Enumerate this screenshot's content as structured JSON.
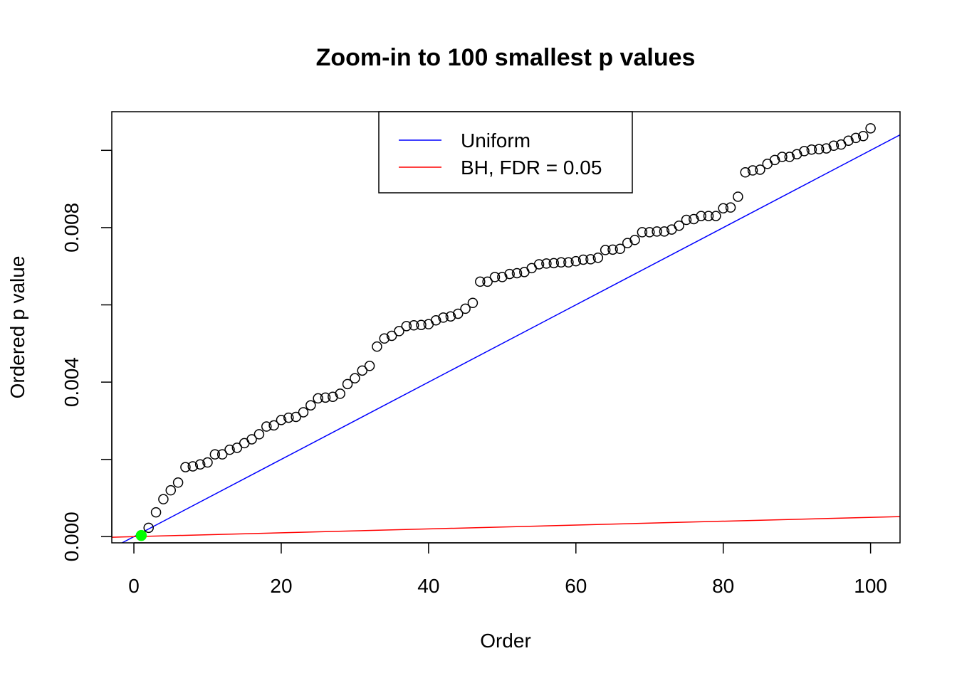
{
  "chart_data": {
    "type": "scatter",
    "title": "Zoom-in to 100 smallest p values",
    "xlabel": "Order",
    "ylabel": "Ordered p value",
    "xlim": [
      -3,
      104
    ],
    "ylim": [
      -0.00016,
      0.011
    ],
    "x_ticks": [
      0,
      20,
      40,
      60,
      80,
      100
    ],
    "x_tick_labels": [
      "0",
      "20",
      "40",
      "60",
      "80",
      "100"
    ],
    "y_ticks": [
      0.0,
      0.002,
      0.004,
      0.006,
      0.008,
      0.01
    ],
    "y_tick_labels": [
      "0.000",
      "",
      "0.004",
      "",
      "0.008",
      ""
    ],
    "series": [
      {
        "name": "Ordered p values",
        "kind": "points",
        "marker": "open-circle",
        "color": "#000000",
        "x": [
          1,
          2,
          3,
          4,
          5,
          6,
          7,
          8,
          9,
          10,
          11,
          12,
          13,
          14,
          15,
          16,
          17,
          18,
          19,
          20,
          21,
          22,
          23,
          24,
          25,
          26,
          27,
          28,
          29,
          30,
          31,
          32,
          33,
          34,
          35,
          36,
          37,
          38,
          39,
          40,
          41,
          42,
          43,
          44,
          45,
          46,
          47,
          48,
          49,
          50,
          51,
          52,
          53,
          54,
          55,
          56,
          57,
          58,
          59,
          60,
          61,
          62,
          63,
          64,
          65,
          66,
          67,
          68,
          69,
          70,
          71,
          72,
          73,
          74,
          75,
          76,
          77,
          78,
          79,
          80,
          81,
          82,
          83,
          84,
          85,
          86,
          87,
          88,
          89,
          90,
          91,
          92,
          93,
          94,
          95,
          96,
          97,
          98,
          99,
          100
        ],
        "y": [
          3e-05,
          0.00023,
          0.00063,
          0.00097,
          0.0012,
          0.0014,
          0.0018,
          0.00182,
          0.00187,
          0.00192,
          0.00213,
          0.00213,
          0.00225,
          0.0023,
          0.00242,
          0.00252,
          0.00265,
          0.00285,
          0.00288,
          0.00302,
          0.00308,
          0.0031,
          0.00322,
          0.0034,
          0.00358,
          0.0036,
          0.00362,
          0.0037,
          0.00395,
          0.0041,
          0.0043,
          0.00442,
          0.00492,
          0.00513,
          0.0052,
          0.00532,
          0.00545,
          0.00547,
          0.00548,
          0.0055,
          0.0056,
          0.00567,
          0.0057,
          0.00577,
          0.0059,
          0.00605,
          0.0066,
          0.0066,
          0.00672,
          0.00672,
          0.0068,
          0.00682,
          0.00685,
          0.00695,
          0.00705,
          0.00707,
          0.00708,
          0.0071,
          0.0071,
          0.00713,
          0.00717,
          0.00718,
          0.00722,
          0.00742,
          0.00743,
          0.00745,
          0.0076,
          0.00768,
          0.00788,
          0.00788,
          0.0079,
          0.0079,
          0.00795,
          0.00805,
          0.0082,
          0.00822,
          0.0083,
          0.0083,
          0.0083,
          0.0085,
          0.00852,
          0.0088,
          0.00943,
          0.00948,
          0.0095,
          0.00965,
          0.00975,
          0.00983,
          0.00983,
          0.0099,
          0.00998,
          0.01002,
          0.01003,
          0.01005,
          0.01012,
          0.01015,
          0.01025,
          0.01032,
          0.01037,
          0.01057
        ]
      },
      {
        "name": "Uniform",
        "kind": "line",
        "color": "#0000FF",
        "intercept": 0,
        "slope": 0.0001
      },
      {
        "name": "BH, FDR = 0.05",
        "kind": "line",
        "color": "#FF0000",
        "intercept": 0,
        "slope": 5e-06
      },
      {
        "name": "Highlighted point",
        "kind": "points",
        "marker": "filled-circle",
        "color": "#00FF00",
        "x": [
          1
        ],
        "y": [
          3e-05
        ]
      }
    ],
    "legend": {
      "position": "top",
      "entries": [
        {
          "label": "Uniform",
          "color": "#0000FF"
        },
        {
          "label": "BH, FDR = 0.05",
          "color": "#FF0000"
        }
      ]
    }
  }
}
